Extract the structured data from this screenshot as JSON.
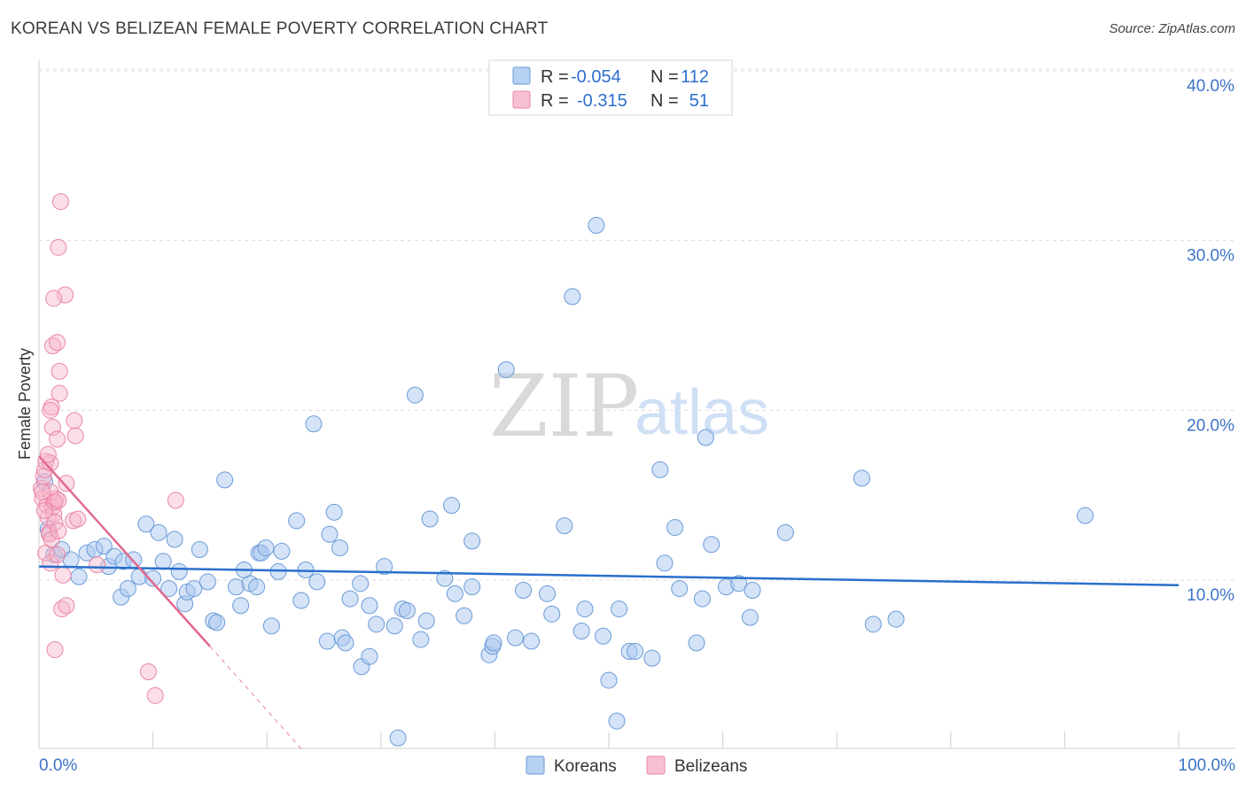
{
  "header": {
    "title": "KOREAN VS BELIZEAN FEMALE POVERTY CORRELATION CHART",
    "source": "Source: ZipAtlas.com"
  },
  "watermark": {
    "zip": "ZIP",
    "atlas": "atlas"
  },
  "legend": {
    "r_label": "R =",
    "n_label": "N =",
    "rows": [
      {
        "r": "-0.054",
        "n": "112"
      },
      {
        "r": "-0.315",
        "n": "51"
      }
    ]
  },
  "bottom_legend": {
    "items": [
      "Koreans",
      "Belizeans"
    ]
  },
  "colors": {
    "blue_fill": "#a9c8ef",
    "blue_stroke": "#6b9bd8",
    "blue_line": "#2a6fcc",
    "pink_fill": "#f6b6ca",
    "pink_stroke": "#ea86a6",
    "pink_line": "#e2688f",
    "tick_text": "#3b73c8",
    "grid": "#dcdcdc"
  },
  "chart_data": {
    "type": "scatter",
    "title": "KOREAN VS BELIZEAN FEMALE POVERTY CORRELATION CHART",
    "xlabel": "",
    "ylabel": "Female Poverty",
    "xlim": [
      0,
      100
    ],
    "ylim": [
      0,
      42
    ],
    "x_tick_labels": [
      "0.0%",
      "100.0%"
    ],
    "y_ticks": [
      10,
      20,
      30,
      40
    ],
    "y_tick_labels": [
      "10.0%",
      "20.0%",
      "30.0%",
      "40.0%"
    ],
    "grid": true,
    "legend_position": "top-center",
    "series": [
      {
        "name": "Koreans",
        "r": -0.054,
        "n": 112,
        "trend": {
          "x": [
            0,
            100
          ],
          "y": [
            10.8,
            9.7
          ]
        },
        "points": [
          [
            0.5,
            15.8
          ],
          [
            0.8,
            13.0
          ],
          [
            1.3,
            11.5
          ],
          [
            2.0,
            11.8
          ],
          [
            2.8,
            11.2
          ],
          [
            3.5,
            10.2
          ],
          [
            4.2,
            11.6
          ],
          [
            4.9,
            11.8
          ],
          [
            5.7,
            12.0
          ],
          [
            6.1,
            10.8
          ],
          [
            6.6,
            11.4
          ],
          [
            7.4,
            11.1
          ],
          [
            7.2,
            9.0
          ],
          [
            7.8,
            9.5
          ],
          [
            8.3,
            11.2
          ],
          [
            8.8,
            10.2
          ],
          [
            9.4,
            13.3
          ],
          [
            10.0,
            10.1
          ],
          [
            10.5,
            12.8
          ],
          [
            10.9,
            11.1
          ],
          [
            11.4,
            9.5
          ],
          [
            11.9,
            12.4
          ],
          [
            12.3,
            10.5
          ],
          [
            12.8,
            8.6
          ],
          [
            13.0,
            9.3
          ],
          [
            13.6,
            9.5
          ],
          [
            14.1,
            11.8
          ],
          [
            14.8,
            9.9
          ],
          [
            15.3,
            7.6
          ],
          [
            15.6,
            7.5
          ],
          [
            16.3,
            15.9
          ],
          [
            17.3,
            9.6
          ],
          [
            17.7,
            8.5
          ],
          [
            18.5,
            9.8
          ],
          [
            19.1,
            9.6
          ],
          [
            19.3,
            11.6
          ],
          [
            19.5,
            11.6
          ],
          [
            19.9,
            11.9
          ],
          [
            20.4,
            7.3
          ],
          [
            21.0,
            10.5
          ],
          [
            21.3,
            11.7
          ],
          [
            22.6,
            13.5
          ],
          [
            23.0,
            8.8
          ],
          [
            23.4,
            10.6
          ],
          [
            24.1,
            19.2
          ],
          [
            24.4,
            9.9
          ],
          [
            25.3,
            6.4
          ],
          [
            25.5,
            12.7
          ],
          [
            25.9,
            14.0
          ],
          [
            26.4,
            11.9
          ],
          [
            26.6,
            6.6
          ],
          [
            26.9,
            6.3
          ],
          [
            27.3,
            8.9
          ],
          [
            28.2,
            9.8
          ],
          [
            28.3,
            4.9
          ],
          [
            29.0,
            8.5
          ],
          [
            29.0,
            5.5
          ],
          [
            29.6,
            7.4
          ],
          [
            30.3,
            10.8
          ],
          [
            31.2,
            7.3
          ],
          [
            31.9,
            8.3
          ],
          [
            32.3,
            8.2
          ],
          [
            33.0,
            20.9
          ],
          [
            33.5,
            6.5
          ],
          [
            34.3,
            13.6
          ],
          [
            35.6,
            10.1
          ],
          [
            36.2,
            14.4
          ],
          [
            36.5,
            9.2
          ],
          [
            37.3,
            7.9
          ],
          [
            38.0,
            12.3
          ],
          [
            38.0,
            9.6
          ],
          [
            39.5,
            5.6
          ],
          [
            39.8,
            6.1
          ],
          [
            39.9,
            6.3
          ],
          [
            41.0,
            22.4
          ],
          [
            41.8,
            6.6
          ],
          [
            42.5,
            9.4
          ],
          [
            43.2,
            6.4
          ],
          [
            45.0,
            8.0
          ],
          [
            46.1,
            13.2
          ],
          [
            46.8,
            26.7
          ],
          [
            47.6,
            7.0
          ],
          [
            47.9,
            8.3
          ],
          [
            48.9,
            30.9
          ],
          [
            49.5,
            6.7
          ],
          [
            50.0,
            4.1
          ],
          [
            50.7,
            1.7
          ],
          [
            50.9,
            8.3
          ],
          [
            51.8,
            5.8
          ],
          [
            52.3,
            5.8
          ],
          [
            53.8,
            5.4
          ],
          [
            54.5,
            16.5
          ],
          [
            54.9,
            11.0
          ],
          [
            55.8,
            13.1
          ],
          [
            56.2,
            9.5
          ],
          [
            57.7,
            6.3
          ],
          [
            58.2,
            8.9
          ],
          [
            58.5,
            18.4
          ],
          [
            59.0,
            12.1
          ],
          [
            60.3,
            9.6
          ],
          [
            61.4,
            9.8
          ],
          [
            62.4,
            7.8
          ],
          [
            62.6,
            9.4
          ],
          [
            65.5,
            12.8
          ],
          [
            72.2,
            16.0
          ],
          [
            73.2,
            7.4
          ],
          [
            75.2,
            7.7
          ],
          [
            91.8,
            13.8
          ],
          [
            31.5,
            0.7
          ],
          [
            44.6,
            9.2
          ],
          [
            34.0,
            7.6
          ],
          [
            18.0,
            10.6
          ]
        ]
      },
      {
        "name": "Belizeans",
        "r": -0.315,
        "n": 51,
        "trend": {
          "x": [
            0,
            15
          ],
          "y": [
            17.3,
            6.1
          ]
        },
        "trend_extension": {
          "x": [
            15,
            23.1
          ],
          "y": [
            6.1,
            0.0
          ]
        },
        "points": [
          [
            0.2,
            15.4
          ],
          [
            0.3,
            14.8
          ],
          [
            0.4,
            16.1
          ],
          [
            0.5,
            16.5
          ],
          [
            0.6,
            17.0
          ],
          [
            0.7,
            14.4
          ],
          [
            0.8,
            13.7
          ],
          [
            0.9,
            12.8
          ],
          [
            0.6,
            11.6
          ],
          [
            0.9,
            12.7
          ],
          [
            1.0,
            11.0
          ],
          [
            1.1,
            12.4
          ],
          [
            1.2,
            14.3
          ],
          [
            1.3,
            14.6
          ],
          [
            1.3,
            13.9
          ],
          [
            1.4,
            13.4
          ],
          [
            1.5,
            14.8
          ],
          [
            1.0,
            15.2
          ],
          [
            1.7,
            12.9
          ],
          [
            1.0,
            16.9
          ],
          [
            0.8,
            17.4
          ],
          [
            1.4,
            14.6
          ],
          [
            1.7,
            14.7
          ],
          [
            1.1,
            20.2
          ],
          [
            1.0,
            20.0
          ],
          [
            1.2,
            19.0
          ],
          [
            1.6,
            18.3
          ],
          [
            1.2,
            23.8
          ],
          [
            1.6,
            24.0
          ],
          [
            1.8,
            22.3
          ],
          [
            1.8,
            21.0
          ],
          [
            2.3,
            26.8
          ],
          [
            1.3,
            26.6
          ],
          [
            1.7,
            29.6
          ],
          [
            1.9,
            32.3
          ],
          [
            1.6,
            11.5
          ],
          [
            2.1,
            10.3
          ],
          [
            2.0,
            8.3
          ],
          [
            2.4,
            8.5
          ],
          [
            1.4,
            5.9
          ],
          [
            2.4,
            15.7
          ],
          [
            3.0,
            13.5
          ],
          [
            3.1,
            19.4
          ],
          [
            3.2,
            18.5
          ],
          [
            3.4,
            13.6
          ],
          [
            5.1,
            10.9
          ],
          [
            9.6,
            4.6
          ],
          [
            10.2,
            3.2
          ],
          [
            12.0,
            14.7
          ],
          [
            0.3,
            15.2
          ],
          [
            0.5,
            14.1
          ]
        ]
      }
    ]
  }
}
